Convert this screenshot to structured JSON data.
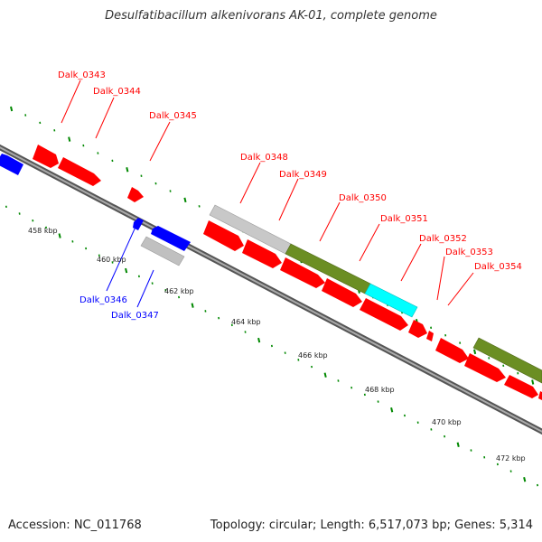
{
  "title": "Desulfatibacillum alkenivorans AK-01, complete genome",
  "footer": {
    "accession": "Accession: NC_011768",
    "summary": "Topology: circular; Length: 6,517,073 bp; Genes: 5,314"
  },
  "colors": {
    "forward_cds": "#ff0000",
    "reverse_cds": "#0000ff",
    "rna_grey": "#bdbdbd",
    "olive": "#6b8e23",
    "cyan": "#00ffff",
    "tick_green": "#008800",
    "backbone": "#808080"
  },
  "kbp_labels": [
    "458 kbp",
    "460 kbp",
    "462 kbp",
    "464 kbp",
    "466 kbp",
    "468 kbp",
    "470 kbp",
    "472 kbp"
  ],
  "gene_labels": [
    {
      "text": "Dalk_0343",
      "color": "red"
    },
    {
      "text": "Dalk_0344",
      "color": "red"
    },
    {
      "text": "Dalk_0345",
      "color": "red"
    },
    {
      "text": "Dalk_0346",
      "color": "blue"
    },
    {
      "text": "Dalk_0347",
      "color": "blue"
    },
    {
      "text": "Dalk_0348",
      "color": "red"
    },
    {
      "text": "Dalk_0349",
      "color": "red"
    },
    {
      "text": "Dalk_0350",
      "color": "red"
    },
    {
      "text": "Dalk_0351",
      "color": "red"
    },
    {
      "text": "Dalk_0352",
      "color": "red"
    },
    {
      "text": "Dalk_0353",
      "color": "red"
    },
    {
      "text": "Dalk_0354",
      "color": "red"
    }
  ]
}
